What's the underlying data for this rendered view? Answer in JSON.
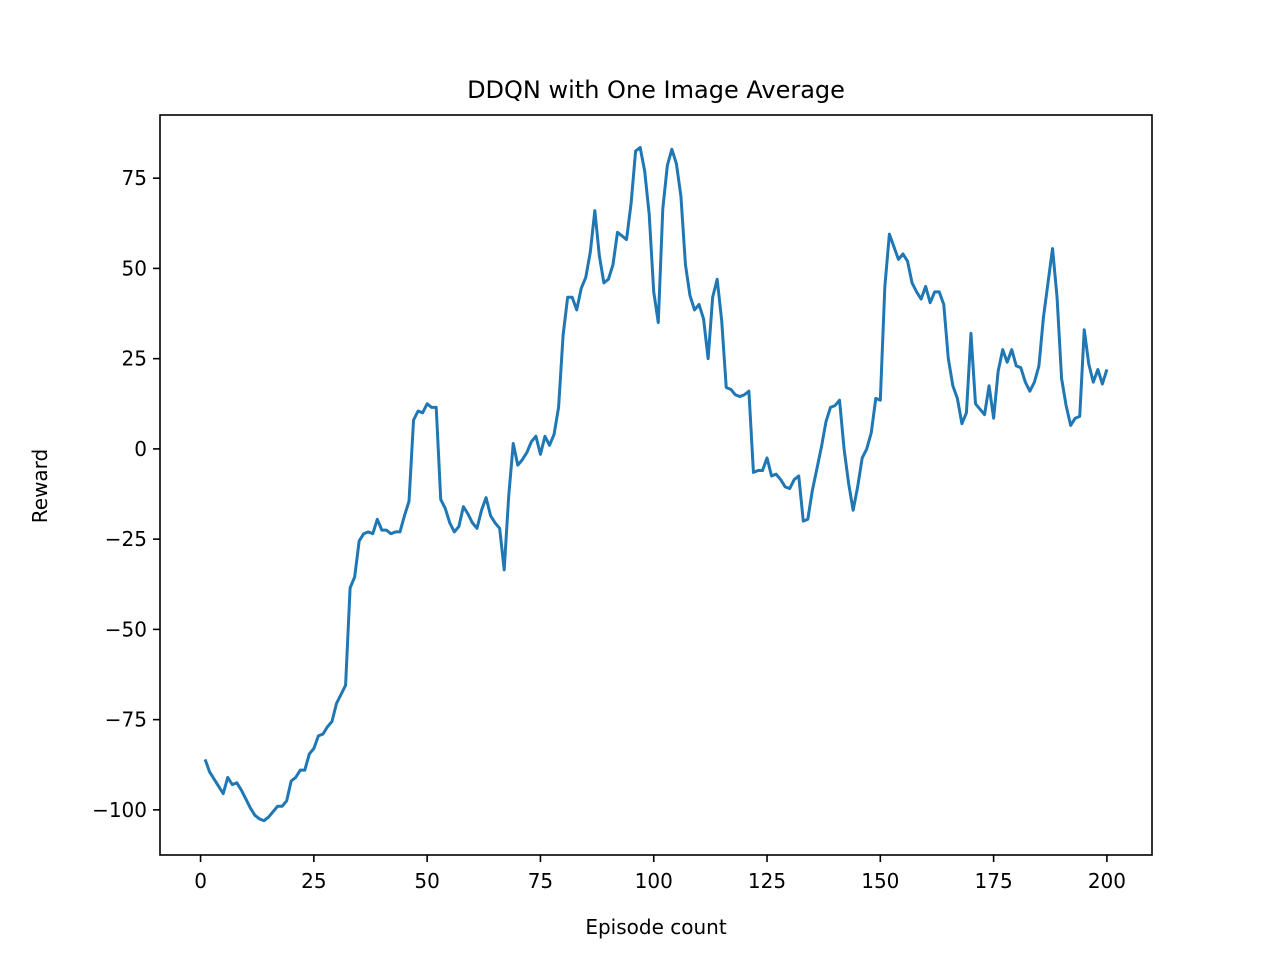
{
  "chart_data": {
    "type": "line",
    "title": "DDQN with One Image Average",
    "xlabel": "Episode count",
    "ylabel": "Reward",
    "xlim": [
      -8.95,
      209.95
    ],
    "ylim": [
      -112.5,
      92.5
    ],
    "xticks": [
      0,
      25,
      50,
      75,
      100,
      125,
      150,
      175,
      200
    ],
    "yticks": [
      -100,
      -75,
      -50,
      -25,
      0,
      25,
      50,
      75
    ],
    "xtick_labels": [
      "0",
      "25",
      "50",
      "75",
      "100",
      "125",
      "150",
      "175",
      "200"
    ],
    "ytick_labels": [
      "−100",
      "−75",
      "−50",
      "−25",
      "0",
      "25",
      "50",
      "75"
    ],
    "grid": false,
    "legend": "none",
    "series": [
      {
        "color": "#1f77b4",
        "x": [
          1,
          2,
          3,
          4,
          5,
          6,
          7,
          8,
          9,
          10,
          11,
          12,
          13,
          14,
          15,
          16,
          17,
          18,
          19,
          20,
          21,
          22,
          23,
          24,
          25,
          26,
          27,
          28,
          29,
          30,
          31,
          32,
          33,
          34,
          35,
          36,
          37,
          38,
          39,
          40,
          41,
          42,
          43,
          44,
          45,
          46,
          47,
          48,
          49,
          50,
          51,
          52,
          53,
          54,
          55,
          56,
          57,
          58,
          59,
          60,
          61,
          62,
          63,
          64,
          65,
          66,
          67,
          68,
          69,
          70,
          71,
          72,
          73,
          74,
          75,
          76,
          77,
          78,
          79,
          80,
          81,
          82,
          83,
          84,
          85,
          86,
          87,
          88,
          89,
          90,
          91,
          92,
          93,
          94,
          95,
          96,
          97,
          98,
          99,
          100,
          101,
          102,
          103,
          104,
          105,
          106,
          107,
          108,
          109,
          110,
          111,
          112,
          113,
          114,
          115,
          116,
          117,
          118,
          119,
          120,
          121,
          122,
          123,
          124,
          125,
          126,
          127,
          128,
          129,
          130,
          131,
          132,
          133,
          134,
          135,
          136,
          137,
          138,
          139,
          140,
          141,
          142,
          143,
          144,
          145,
          146,
          147,
          148,
          149,
          150,
          151,
          152,
          153,
          154,
          155,
          156,
          157,
          158,
          159,
          160,
          161,
          162,
          163,
          164,
          165,
          166,
          167,
          168,
          169,
          170,
          171,
          172,
          173,
          174,
          175,
          176,
          177,
          178,
          179,
          180,
          181,
          182,
          183,
          184,
          185,
          186,
          187,
          188,
          189,
          190,
          191,
          192,
          193,
          194,
          195,
          196,
          197,
          198,
          199,
          200
        ],
        "y": [
          -86,
          -89.5,
          -91.5,
          -93.5,
          -95.5,
          -91,
          -93,
          -92.5,
          -94.5,
          -97,
          -99.5,
          -101.5,
          -102.5,
          -103,
          -102,
          -100.5,
          -99,
          -99,
          -97.5,
          -92,
          -91,
          -89,
          -89,
          -84.5,
          -83,
          -79.5,
          -79,
          -77,
          -75.5,
          -70.5,
          -68,
          -65.5,
          -38.5,
          -35.5,
          -25.5,
          -23.5,
          -23,
          -23.5,
          -19.5,
          -22.5,
          -22.5,
          -23.5,
          -23,
          -23,
          -18.5,
          -14.5,
          8,
          10.5,
          10,
          12.5,
          11.5,
          11.5,
          -14,
          -16.5,
          -20.5,
          -23,
          -21.5,
          -16,
          -18,
          -20.5,
          -22,
          -17,
          -13.5,
          -18.5,
          -20.5,
          -22,
          -33.5,
          -13,
          1.5,
          -4.5,
          -3,
          -1,
          2,
          3.5,
          -1.5,
          3.5,
          1,
          4,
          11.5,
          31.5,
          42,
          42,
          38.5,
          44.5,
          47.5,
          54.5,
          66,
          53.5,
          46,
          47,
          51,
          60,
          59,
          58,
          68,
          82.5,
          83.5,
          77,
          65,
          43.5,
          35,
          66.5,
          78.5,
          83,
          79,
          70,
          51,
          42.5,
          38.5,
          40,
          36,
          25,
          42,
          47,
          35.5,
          17,
          16.5,
          15,
          14.5,
          15,
          16,
          -6.5,
          -6,
          -6,
          -2.5,
          -7.5,
          -7,
          -8.5,
          -10.5,
          -11,
          -8.5,
          -7.5,
          -20,
          -19.5,
          -11.5,
          -5.5,
          0.5,
          7.5,
          11.5,
          12,
          13.5,
          0,
          -9.5,
          -17,
          -10.5,
          -2.5,
          0,
          4.5,
          14,
          13.5,
          45,
          59.5,
          56,
          52.5,
          54,
          52,
          46,
          43.5,
          41.5,
          45,
          40.5,
          43.5,
          43.5,
          40,
          25,
          17.5,
          14,
          7,
          10,
          32,
          12.5,
          11,
          9.5,
          17.5,
          8.5,
          21.5,
          27.5,
          24,
          27.5,
          23,
          22.5,
          18.5,
          16,
          18.5,
          23,
          36.5,
          46,
          55.5,
          42,
          19.5,
          12,
          6.5,
          8.5,
          9,
          33,
          23.5,
          18.5,
          22,
          18,
          22
        ]
      }
    ]
  }
}
